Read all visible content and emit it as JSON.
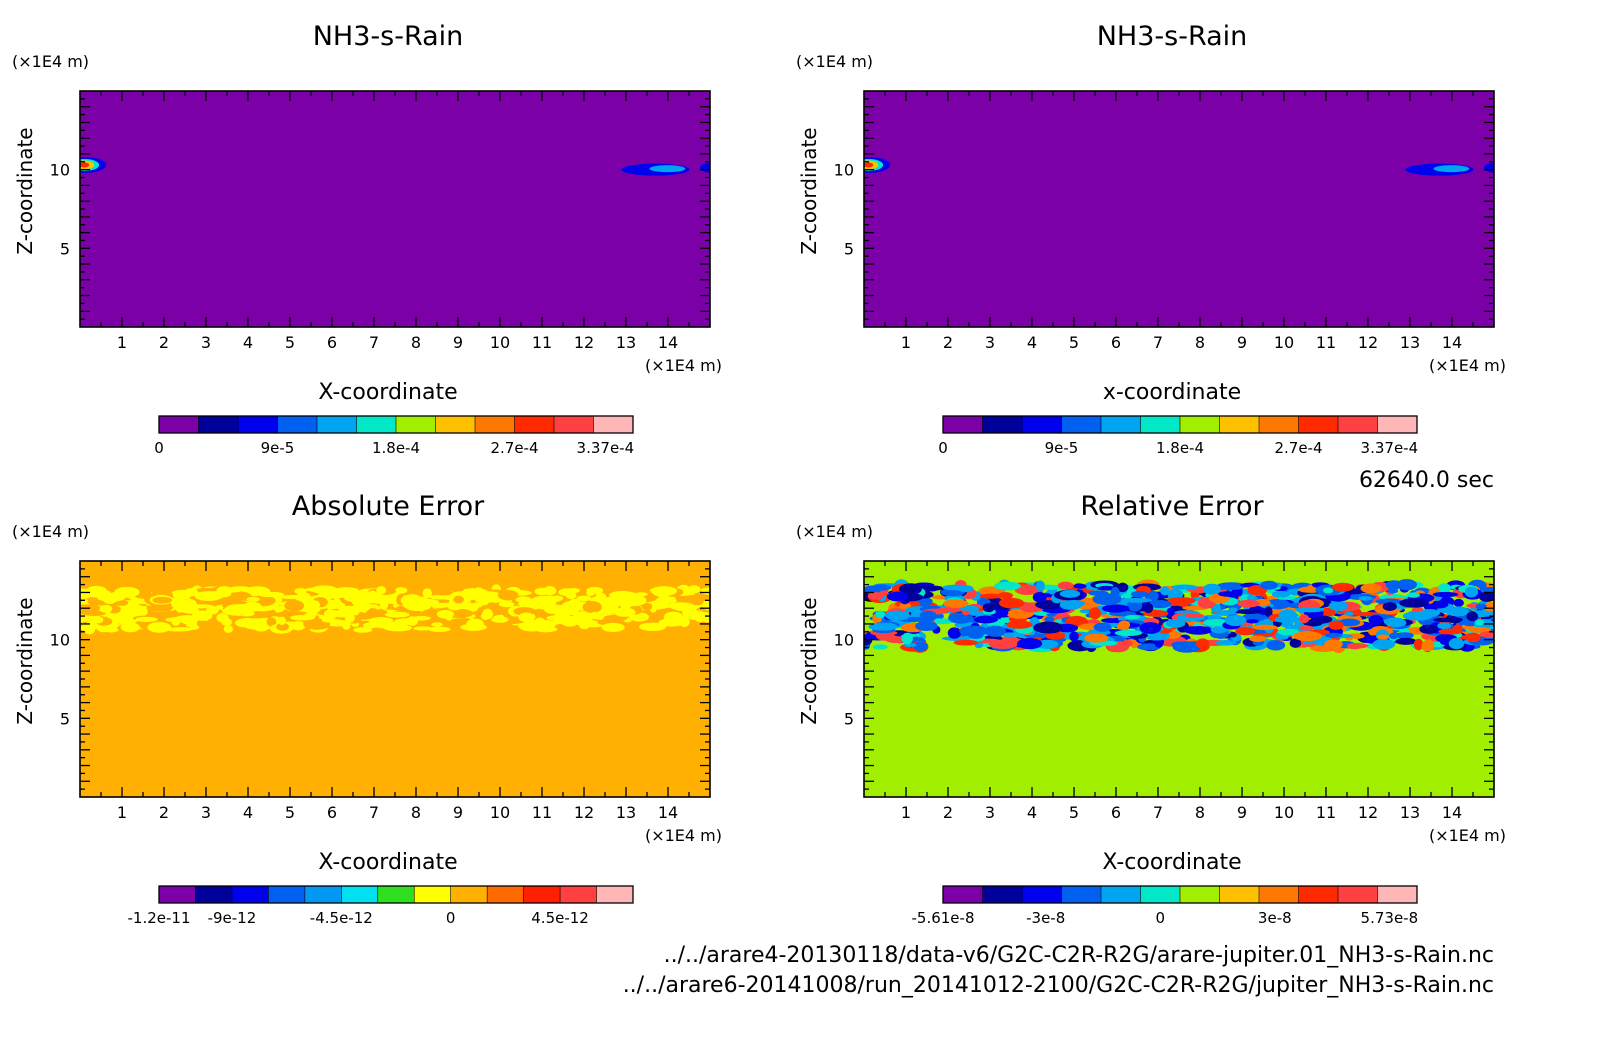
{
  "figure": {
    "time_label": "62640.0 sec",
    "file_line_1": "../../arare4-20130118/data-v6/G2C-C2R-R2G/arare-jupiter.01_NH3-s-Rain.nc",
    "file_line_2": "../../arare6-20141008/run_20141012-2100/G2C-C2R-R2G/jupiter_NH3-s-Rain.nc"
  },
  "chart_data": [
    {
      "type": "heatmap",
      "title": "NH3-s-Rain",
      "xlabel": "X-coordinate",
      "ylabel": "Z-coordinate",
      "x_unit": "(×1E4 m)",
      "y_unit": "(×1E4 m)",
      "xlim": [
        0,
        15
      ],
      "ylim": [
        0,
        15
      ],
      "x_ticks": [
        1,
        2,
        3,
        4,
        5,
        6,
        7,
        8,
        9,
        10,
        11,
        12,
        13,
        14
      ],
      "y_ticks": [
        5,
        10
      ],
      "background_level": 0,
      "features": [
        {
          "kind": "blob",
          "x": 0.1,
          "z": 10.3,
          "level": 7
        },
        {
          "kind": "blob",
          "x": 13.7,
          "z": 10.0,
          "level": 2
        }
      ],
      "colorbar": {
        "colors": [
          "#7b00a8",
          "#00009a",
          "#0000ee",
          "#0060f0",
          "#00a4f0",
          "#00e8c8",
          "#a2ee00",
          "#ffc000",
          "#ff7800",
          "#ff2a00",
          "#ff4040",
          "#ffb6b6"
        ],
        "tick_labels": [
          "0",
          "9e-5",
          "1.8e-4",
          "2.7e-4",
          "3.37e-4"
        ],
        "tick_levels": [
          0,
          3,
          6,
          9,
          11.3
        ]
      }
    },
    {
      "type": "heatmap",
      "title": "NH3-s-Rain",
      "xlabel": "x-coordinate",
      "ylabel": "Z-coordinate",
      "x_unit": "(×1E4 m)",
      "y_unit": "(×1E4 m)",
      "xlim": [
        0,
        15
      ],
      "ylim": [
        0,
        15
      ],
      "x_ticks": [
        1,
        2,
        3,
        4,
        5,
        6,
        7,
        8,
        9,
        10,
        11,
        12,
        13,
        14
      ],
      "y_ticks": [
        5,
        10
      ],
      "background_level": 0,
      "features": [
        {
          "kind": "blob",
          "x": 0.1,
          "z": 10.3,
          "level": 7
        },
        {
          "kind": "blob",
          "x": 13.7,
          "z": 10.0,
          "level": 2
        }
      ],
      "colorbar": {
        "colors": [
          "#7b00a8",
          "#00009a",
          "#0000ee",
          "#0060f0",
          "#00a4f0",
          "#00e8c8",
          "#a2ee00",
          "#ffc000",
          "#ff7800",
          "#ff2a00",
          "#ff4040",
          "#ffb6b6"
        ],
        "tick_labels": [
          "0",
          "9e-5",
          "1.8e-4",
          "2.7e-4",
          "3.37e-4"
        ],
        "tick_levels": [
          0,
          3,
          6,
          9,
          11.3
        ]
      }
    },
    {
      "type": "heatmap",
      "title": "Absolute Error",
      "xlabel": "X-coordinate",
      "ylabel": "Z-coordinate",
      "x_unit": "(×1E4 m)",
      "y_unit": "(×1E4 m)",
      "xlim": [
        0,
        15
      ],
      "ylim": [
        0,
        15
      ],
      "x_ticks": [
        1,
        2,
        3,
        4,
        5,
        6,
        7,
        8,
        9,
        10,
        11,
        12,
        13,
        14
      ],
      "y_ticks": [
        5,
        10
      ],
      "background_level": 8,
      "features": [
        {
          "kind": "noise_band",
          "z_min": 10.6,
          "z_max": 13.2,
          "levels": [
            7,
            7,
            7,
            8,
            7
          ],
          "density": 0.45,
          "seed": 7
        }
      ],
      "colorbar": {
        "colors": [
          "#7b00a8",
          "#00009a",
          "#0000ee",
          "#0060f0",
          "#0098f0",
          "#00e0f0",
          "#30e020",
          "#ffff00",
          "#ffb000",
          "#ff6a00",
          "#ff2000",
          "#ff4040",
          "#ffb6b6"
        ],
        "tick_labels": [
          "-1.2e-11",
          "-9e-12",
          "-4.5e-12",
          "0",
          "4.5e-12"
        ],
        "tick_levels": [
          0,
          2,
          5,
          8,
          11
        ]
      }
    },
    {
      "type": "heatmap",
      "title": "Relative Error",
      "xlabel": "X-coordinate",
      "ylabel": "Z-coordinate",
      "x_unit": "(×1E4 m)",
      "y_unit": "(×1E4 m)",
      "xlim": [
        0,
        15
      ],
      "ylim": [
        0,
        15
      ],
      "x_ticks": [
        1,
        2,
        3,
        4,
        5,
        6,
        7,
        8,
        9,
        10,
        11,
        12,
        13,
        14
      ],
      "y_ticks": [
        5,
        10
      ],
      "background_level": 6,
      "features": [
        {
          "kind": "noise_band",
          "z_min": 9.5,
          "z_max": 13.5,
          "levels": [
            1,
            2,
            3,
            4,
            5,
            8,
            9,
            10,
            4,
            3
          ],
          "density": 0.55,
          "seed": 13
        }
      ],
      "colorbar": {
        "colors": [
          "#7b00a8",
          "#00009a",
          "#0000ee",
          "#0060f0",
          "#00a4f0",
          "#00e8c8",
          "#a2ee00",
          "#ffc000",
          "#ff7800",
          "#ff2a00",
          "#ff4040",
          "#ffb6b6"
        ],
        "tick_labels": [
          "-5.61e-8",
          "-3e-8",
          "0",
          "3e-8",
          "5.73e-8"
        ],
        "tick_levels": [
          0,
          2.6,
          5.5,
          8.4,
          11.3
        ]
      }
    }
  ]
}
